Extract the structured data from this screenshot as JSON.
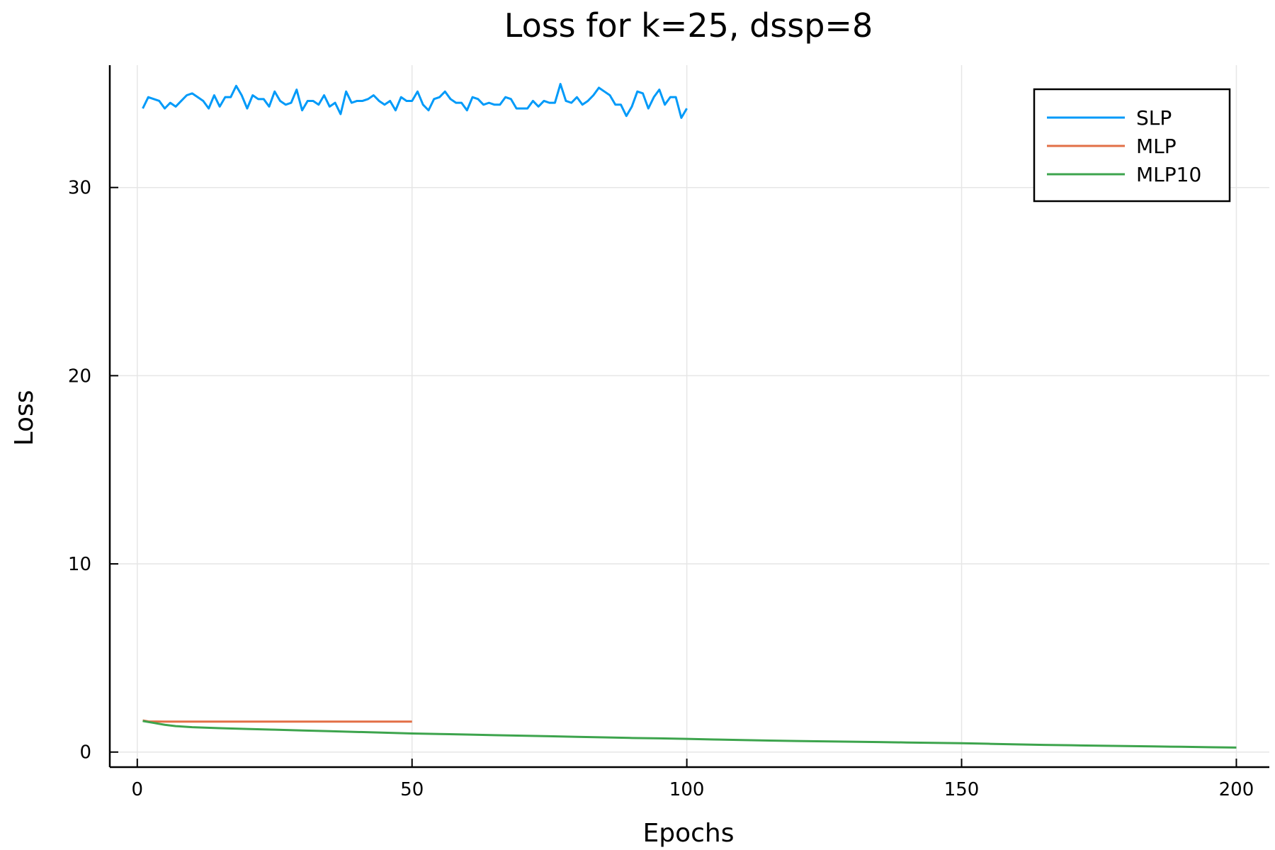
{
  "chart_data": {
    "type": "line",
    "title": "Loss for k=25, dssp=8",
    "xlabel": "Epochs",
    "ylabel": "Loss",
    "xlim": [
      -5,
      206
    ],
    "ylim": [
      -0.8,
      36.5
    ],
    "xticks": [
      0,
      50,
      100,
      150,
      200
    ],
    "yticks": [
      0,
      10,
      20,
      30
    ],
    "xtick_labels": [
      "0",
      "50",
      "100",
      "150",
      "200"
    ],
    "ytick_labels": [
      "0",
      "10",
      "20",
      "30"
    ],
    "grid": true,
    "legend_position": "top-right",
    "series": [
      {
        "name": "SLP",
        "color": "#009af9",
        "x": [
          1,
          2,
          3,
          4,
          5,
          6,
          7,
          8,
          9,
          10,
          11,
          12,
          13,
          14,
          15,
          16,
          17,
          18,
          19,
          20,
          21,
          22,
          23,
          24,
          25,
          26,
          27,
          28,
          29,
          30,
          31,
          32,
          33,
          34,
          35,
          36,
          37,
          38,
          39,
          40,
          41,
          42,
          43,
          44,
          45,
          46,
          47,
          48,
          49,
          50,
          51,
          52,
          53,
          54,
          55,
          56,
          57,
          58,
          59,
          60,
          61,
          62,
          63,
          64,
          65,
          66,
          67,
          68,
          69,
          70,
          71,
          72,
          73,
          74,
          75,
          76,
          77,
          78,
          79,
          80,
          81,
          82,
          83,
          84,
          85,
          86,
          87,
          88,
          89,
          90,
          91,
          92,
          93,
          94,
          95,
          96,
          97,
          98,
          99,
          100
        ],
        "y": [
          34.2,
          34.8,
          34.7,
          34.6,
          34.2,
          34.5,
          34.3,
          34.6,
          34.9,
          35.0,
          34.8,
          34.6,
          34.2,
          34.9,
          34.3,
          34.8,
          34.8,
          35.4,
          34.9,
          34.2,
          34.9,
          34.7,
          34.7,
          34.3,
          35.1,
          34.6,
          34.4,
          34.5,
          35.2,
          34.1,
          34.6,
          34.6,
          34.4,
          34.9,
          34.3,
          34.5,
          33.9,
          35.1,
          34.5,
          34.6,
          34.6,
          34.7,
          34.9,
          34.6,
          34.4,
          34.6,
          34.1,
          34.8,
          34.6,
          34.6,
          35.1,
          34.4,
          34.1,
          34.7,
          34.8,
          35.1,
          34.7,
          34.5,
          34.5,
          34.1,
          34.8,
          34.7,
          34.4,
          34.5,
          34.4,
          34.4,
          34.8,
          34.7,
          34.2,
          34.2,
          34.2,
          34.6,
          34.3,
          34.6,
          34.5,
          34.5,
          35.5,
          34.6,
          34.5,
          34.8,
          34.4,
          34.6,
          34.9,
          35.3,
          35.1,
          34.9,
          34.4,
          34.4,
          33.8,
          34.3,
          35.1,
          35.0,
          34.2,
          34.8,
          35.2,
          34.4,
          34.8,
          34.8,
          33.7,
          34.2
        ]
      },
      {
        "name": "MLP",
        "color": "#e26f46",
        "x": [
          1,
          2,
          5,
          10,
          15,
          20,
          25,
          30,
          35,
          40,
          45,
          50
        ],
        "y": [
          1.68,
          1.63,
          1.62,
          1.62,
          1.62,
          1.62,
          1.62,
          1.62,
          1.62,
          1.62,
          1.62,
          1.62
        ]
      },
      {
        "name": "MLP10",
        "color": "#3da44d",
        "x": [
          1,
          3,
          5,
          7,
          10,
          15,
          20,
          25,
          30,
          35,
          40,
          45,
          50,
          55,
          60,
          65,
          70,
          75,
          80,
          85,
          90,
          95,
          100,
          105,
          110,
          115,
          120,
          125,
          130,
          135,
          140,
          145,
          150,
          155,
          160,
          165,
          170,
          175,
          180,
          185,
          190,
          195,
          200
        ],
        "y": [
          1.65,
          1.55,
          1.45,
          1.38,
          1.32,
          1.27,
          1.23,
          1.19,
          1.15,
          1.11,
          1.07,
          1.03,
          0.99,
          0.96,
          0.93,
          0.9,
          0.87,
          0.84,
          0.81,
          0.78,
          0.75,
          0.73,
          0.7,
          0.67,
          0.64,
          0.61,
          0.59,
          0.57,
          0.55,
          0.53,
          0.51,
          0.49,
          0.47,
          0.44,
          0.41,
          0.38,
          0.36,
          0.34,
          0.32,
          0.3,
          0.28,
          0.26,
          0.24
        ]
      }
    ]
  }
}
